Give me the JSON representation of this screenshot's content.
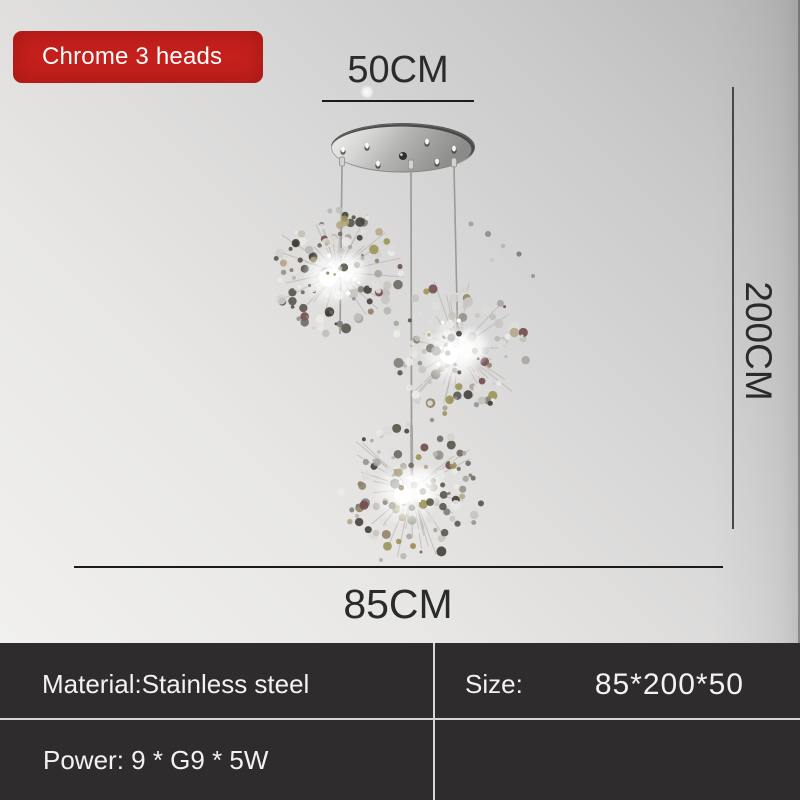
{
  "badge": {
    "label": "Chrome 3 heads"
  },
  "dimensions": {
    "canopy_width": "50CM",
    "drop_height": "200CM",
    "fixture_width": "85CM"
  },
  "spec_table": {
    "material": "Material:Stainless steel",
    "power": "Power: 9 * G9 * 5W",
    "size_label": "Size:",
    "size_value": "85*200*50"
  },
  "colors": {
    "badge_bg": "#c4201c",
    "badge_text": "#ffffff",
    "table_bg": "#2e2c2d",
    "table_text": "#f3f2f2",
    "divider": "#d6d6d6",
    "dimension_text": "#2b2b2b",
    "dimension_line": "#1b1b1b",
    "chrome_light": "#f0f0ef",
    "chrome_dark": "#8b8b8a"
  }
}
